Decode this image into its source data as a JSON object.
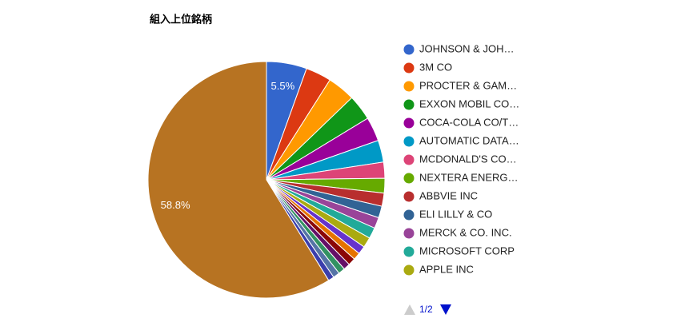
{
  "chart_data": {
    "type": "pie",
    "title": "組入上位銘柄",
    "categories": [
      "JOHNSON & JOH…",
      "3M CO",
      "PROCTER & GAM…",
      "EXXON MOBIL CO…",
      "COCA-COLA CO/T…",
      "AUTOMATIC DATA…",
      "MCDONALD'S CO…",
      "NEXTERA ENERG…",
      "ABBVIE INC",
      "ELI LILLY & CO",
      "MERCK & CO. INC.",
      "MICROSOFT CORP",
      "APPLE INC",
      null,
      null,
      null,
      null,
      null,
      null,
      null,
      null
    ],
    "values": [
      5.5,
      3.5,
      3.8,
      3.5,
      3.3,
      3.0,
      2.2,
      2.0,
      1.8,
      1.6,
      1.5,
      1.5,
      1.4,
      1.1,
      1.0,
      1.0,
      0.9,
      0.9,
      0.9,
      0.8,
      58.8
    ],
    "value_labels": [
      "5.5%",
      null,
      null,
      null,
      null,
      null,
      null,
      null,
      null,
      null,
      null,
      null,
      null,
      null,
      null,
      null,
      null,
      null,
      null,
      null,
      "58.8%"
    ],
    "colors": [
      "#3366cc",
      "#dc3912",
      "#ff9900",
      "#109618",
      "#990099",
      "#0099c6",
      "#dd4477",
      "#66aa00",
      "#b82e2e",
      "#316395",
      "#994499",
      "#22aa99",
      "#aaaa11",
      "#6633cc",
      "#e67300",
      "#8b0707",
      "#651067",
      "#329262",
      "#5574a6",
      "#3b3eac",
      "#b77322"
    ],
    "legend": "right",
    "legend_page": "1/2"
  }
}
